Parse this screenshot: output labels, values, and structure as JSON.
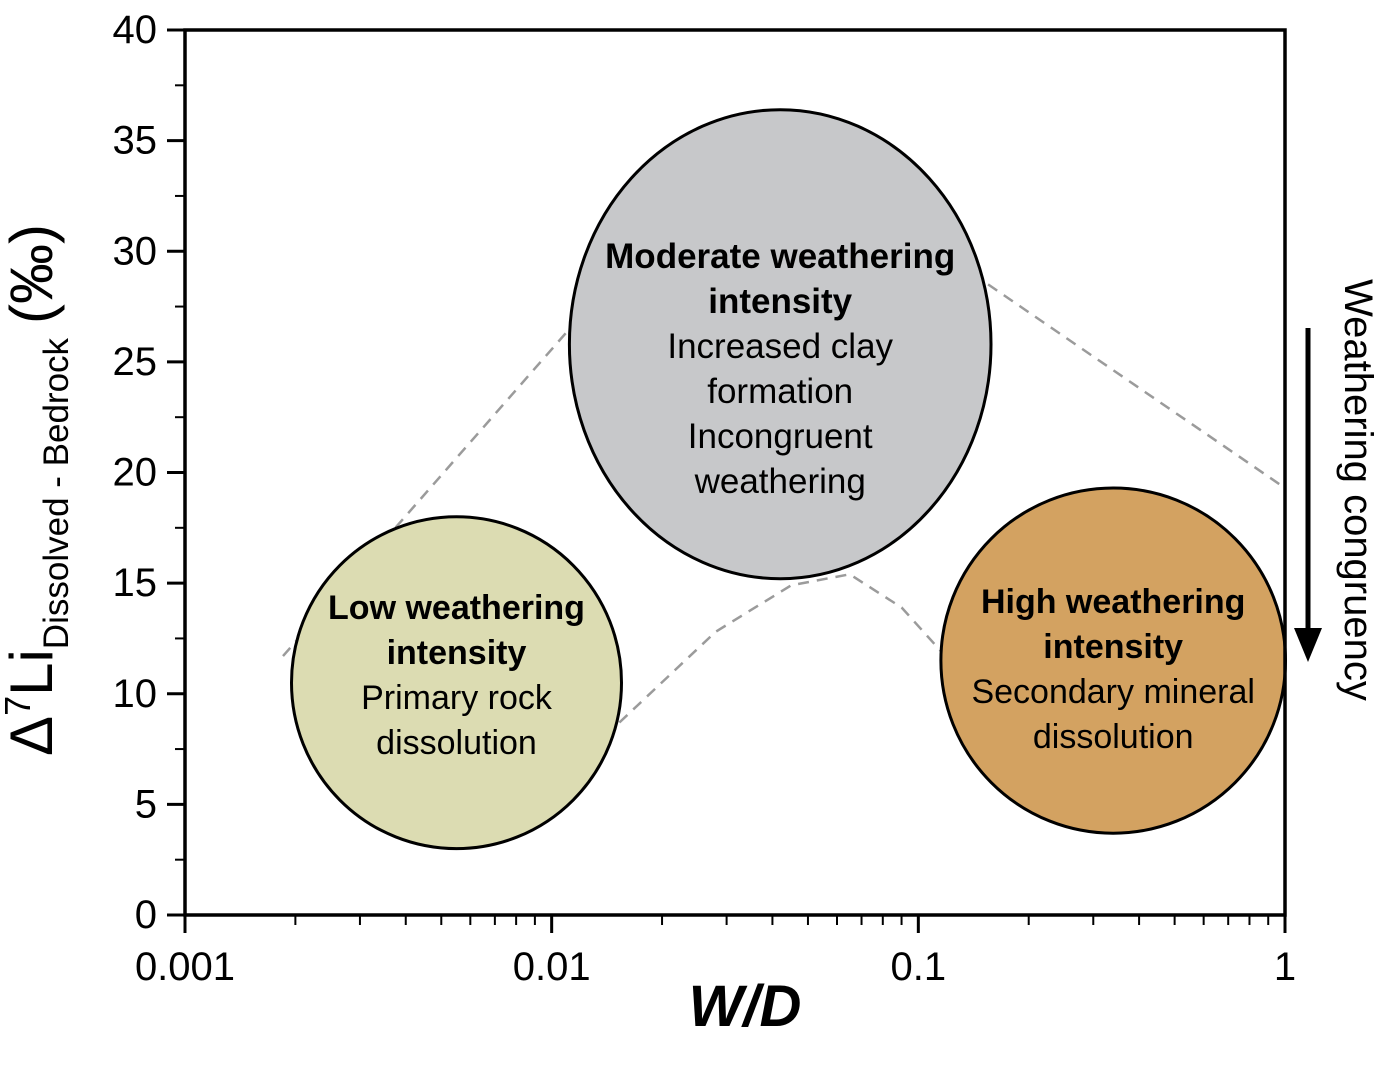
{
  "chart_data": {
    "type": "scatter",
    "title": "",
    "xlabel": "W/D",
    "ylabel": {
      "prefix": "Δ",
      "superscript": "7",
      "element": "Li",
      "subscript": "Dissolved - Bedrock",
      "units": "(‰)"
    },
    "x_scale": "log",
    "xlim": [
      0.001,
      1
    ],
    "ylim": [
      0,
      40
    ],
    "x_ticks": [
      {
        "value": 0.001,
        "label": "0.001"
      },
      {
        "value": 0.01,
        "label": "0.01"
      },
      {
        "value": 0.1,
        "label": "0.1"
      },
      {
        "value": 1,
        "label": "1"
      }
    ],
    "y_ticks": [
      0,
      5,
      10,
      15,
      20,
      25,
      30,
      35,
      40
    ],
    "y_minor_ticks": [
      2.5,
      7.5,
      12.5,
      17.5,
      22.5,
      27.5,
      32.5,
      37.5
    ],
    "grid": false,
    "legend": null,
    "colors": {
      "frame": "#000000",
      "dashed_guide": "#9b9b9b",
      "region_stroke": "#000000",
      "low_region_fill": "#dcdcb2",
      "moderate_region_fill": "#c7c8ca",
      "high_region_fill": "#d3a261"
    },
    "regions": [
      {
        "id": "moderate-weathering",
        "fill": "#c7c8ca",
        "center": {
          "x": 0.042,
          "y": 25.8
        },
        "rx_decades": 0.575,
        "ry_units": 10.6,
        "title_lines": [
          "Moderate weathering",
          "intensity"
        ],
        "body_lines": [
          "Increased clay",
          "formation",
          "Incongruent",
          "weathering"
        ],
        "font_size": 35,
        "line_height": 45,
        "text_dy": 24
      },
      {
        "id": "low-weathering",
        "fill": "#dcdcb2",
        "center": {
          "x": 0.0055,
          "y": 10.5
        },
        "rx_decades": 0.45,
        "ry_units": 7.5,
        "title_lines": [
          "Low weathering",
          "intensity"
        ],
        "body_lines": [
          "Primary rock",
          "dissolution"
        ],
        "font_size": 34,
        "line_height": 45,
        "text_dy": -8
      },
      {
        "id": "high-weathering",
        "fill": "#d3a261",
        "center": {
          "x": 0.34,
          "y": 11.5
        },
        "rx_decades": 0.47,
        "ry_units": 7.8,
        "title_lines": [
          "High weathering",
          "intensity"
        ],
        "body_lines": [
          "Secondary mineral",
          "dissolution"
        ],
        "font_size": 34,
        "line_height": 45,
        "text_dy": 8
      }
    ],
    "dashed_guides": [
      {
        "name": "left-rising-guide",
        "points": [
          [
            0.00185,
            11.7
          ],
          [
            0.0112,
            26.5
          ]
        ]
      },
      {
        "name": "right-descending-guide",
        "points": [
          [
            0.155,
            28.5
          ],
          [
            1.0,
            19.3
          ]
        ]
      },
      {
        "name": "central-hump-guide",
        "points": [
          [
            0.0153,
            8.7
          ],
          [
            0.028,
            12.8
          ],
          [
            0.045,
            14.9
          ],
          [
            0.065,
            15.4
          ],
          [
            0.09,
            13.9
          ],
          [
            0.12,
            11.6
          ]
        ]
      }
    ],
    "right_annotation": {
      "label": "Weathering congruency",
      "arrow_direction": "down"
    }
  }
}
